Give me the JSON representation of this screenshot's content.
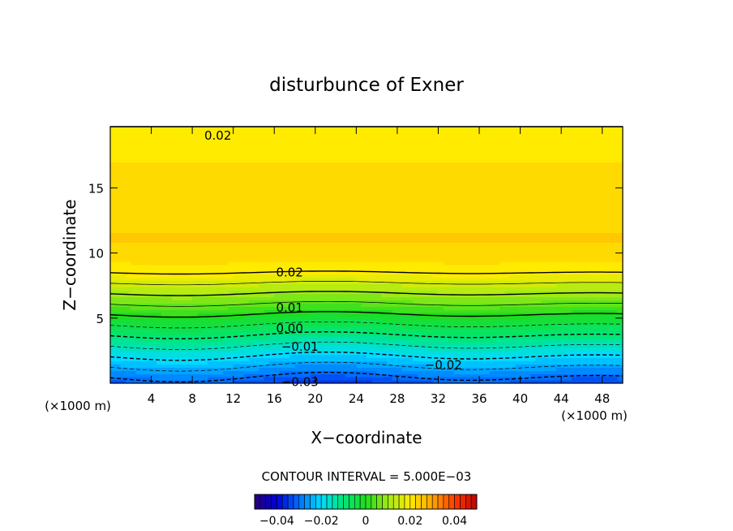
{
  "chart_data": {
    "type": "contour",
    "title": "disturbunce of Exner",
    "xlabel": "X−coordinate",
    "ylabel": "Z−coordinate",
    "x_unit": "(×1000 m)",
    "y_unit": "(×1000 m)",
    "xlim": [
      0,
      50
    ],
    "ylim": [
      0,
      19.7
    ],
    "x_ticks": [
      4,
      8,
      12,
      16,
      20,
      24,
      28,
      32,
      36,
      40,
      44,
      48
    ],
    "y_ticks": [
      5,
      10,
      15
    ],
    "contour_interval_text": "CONTOUR INTERVAL = 5.000E−03",
    "colorbar": {
      "range": [
        -0.05,
        0.05
      ],
      "ticks": [
        {
          "value": -0.04,
          "label": "−0.04"
        },
        {
          "value": -0.02,
          "label": "−0.02"
        },
        {
          "value": 0,
          "label": "0"
        },
        {
          "value": 0.02,
          "label": "0.02"
        },
        {
          "value": 0.04,
          "label": "0.04"
        }
      ]
    },
    "contour_labels": [
      {
        "text": "0.02",
        "x": 10.5,
        "z": 19.0
      },
      {
        "text": "0.02",
        "x": 17.5,
        "z": 8.5
      },
      {
        "text": "0.01",
        "x": 17.5,
        "z": 5.8
      },
      {
        "text": "0.00",
        "x": 17.5,
        "z": 4.2
      },
      {
        "text": "−0.01",
        "x": 18.5,
        "z": 2.8
      },
      {
        "text": "−0.02",
        "x": 32.5,
        "z": 1.4
      },
      {
        "text": "−0.03",
        "x": 18.5,
        "z": 0.1
      }
    ]
  }
}
